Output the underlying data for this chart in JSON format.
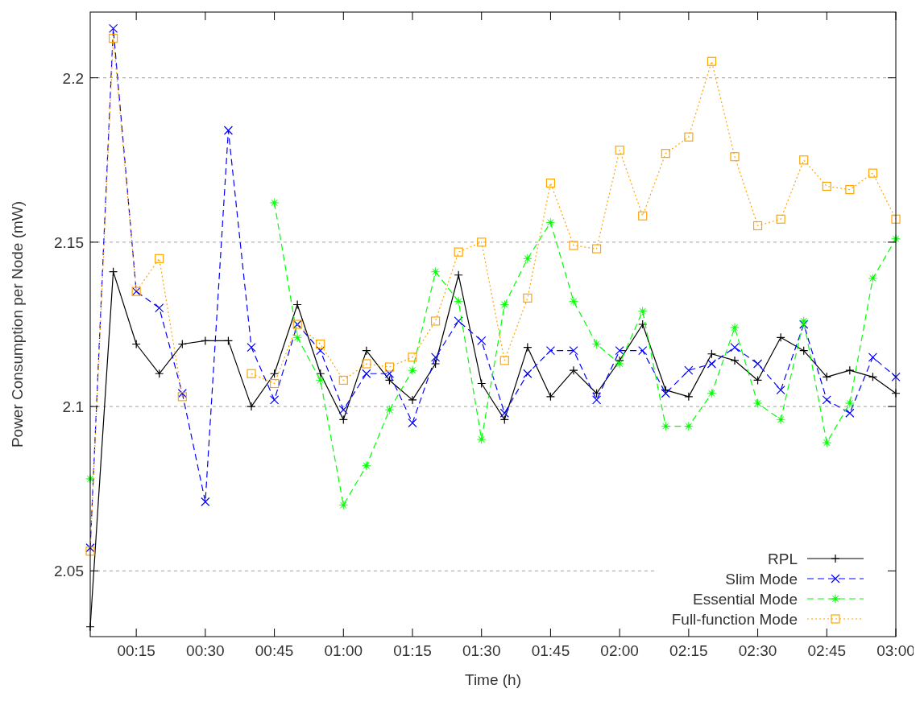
{
  "chart_data": {
    "type": "line",
    "xlabel": "Time (h)",
    "ylabel": "Power Consumption per Node (mW)",
    "x": [
      0.0833,
      0.1667,
      0.25,
      0.3333,
      0.4167,
      0.5,
      0.5833,
      0.6667,
      0.75,
      0.8333,
      0.9167,
      1,
      1.0833,
      1.1667,
      1.25,
      1.3333,
      1.4167,
      1.5,
      1.5833,
      1.6667,
      1.75,
      1.8333,
      1.9167,
      2,
      2.0833,
      2.1667,
      2.25,
      2.3333,
      2.4167,
      2.5,
      2.5833,
      2.6667,
      2.75,
      2.8333,
      2.9167,
      3
    ],
    "series": [
      {
        "name": "RPL",
        "color": "#000000",
        "line_style": "solid",
        "marker": "plus",
        "values": [
          2.033,
          2.141,
          2.119,
          2.11,
          2.119,
          2.12,
          2.12,
          2.1,
          2.11,
          2.131,
          2.11,
          2.096,
          2.117,
          2.108,
          2.102,
          2.113,
          2.14,
          2.107,
          2.096,
          2.118,
          2.103,
          2.111,
          2.104,
          2.114,
          2.125,
          2.105,
          2.103,
          2.116,
          2.114,
          2.108,
          2.121,
          2.117,
          2.109,
          2.111,
          2.109,
          2.104
        ]
      },
      {
        "name": "Slim Mode",
        "color": "#0000ff",
        "line_style": "dashed",
        "marker": "cross",
        "values": [
          2.057,
          2.215,
          2.135,
          2.13,
          2.104,
          2.071,
          2.184,
          2.118,
          2.102,
          2.125,
          2.117,
          2.099,
          2.11,
          2.11,
          2.095,
          2.115,
          2.126,
          2.12,
          2.098,
          2.11,
          2.117,
          2.117,
          2.102,
          2.117,
          2.117,
          2.104,
          2.111,
          2.113,
          2.118,
          2.113,
          2.105,
          2.125,
          2.102,
          2.098,
          2.115,
          2.109
        ]
      },
      {
        "name": "Essential Mode",
        "color": "#00ff00",
        "line_style": "dashed",
        "marker": "star",
        "values": [
          2.078,
          null,
          null,
          null,
          null,
          null,
          null,
          null,
          2.162,
          2.121,
          2.108,
          2.07,
          2.082,
          2.099,
          2.111,
          2.141,
          2.132,
          2.09,
          2.131,
          2.145,
          2.156,
          2.132,
          2.119,
          2.113,
          2.129,
          2.094,
          2.094,
          2.104,
          2.124,
          2.101,
          2.096,
          2.126,
          2.089,
          2.101,
          2.139,
          2.151
        ]
      },
      {
        "name": "Full-function Mode",
        "color": "#ffa500",
        "line_style": "dotted",
        "marker": "square",
        "values": [
          2.056,
          2.212,
          2.135,
          2.145,
          2.103,
          null,
          null,
          2.11,
          2.107,
          2.125,
          2.119,
          2.108,
          2.113,
          2.112,
          2.115,
          2.126,
          2.147,
          2.15,
          2.114,
          2.133,
          2.168,
          2.149,
          2.148,
          2.178,
          2.158,
          2.177,
          2.182,
          2.205,
          2.176,
          2.155,
          2.157,
          2.175,
          2.167,
          2.166,
          2.171,
          2.157
        ]
      }
    ],
    "xlim": [
      0.0833,
      3
    ],
    "xticks": [
      {
        "value": 0.25,
        "label": "00:15"
      },
      {
        "value": 0.5,
        "label": "00:30"
      },
      {
        "value": 0.75,
        "label": "00:45"
      },
      {
        "value": 1,
        "label": "01:00"
      },
      {
        "value": 1.25,
        "label": "01:15"
      },
      {
        "value": 1.5,
        "label": "01:30"
      },
      {
        "value": 1.75,
        "label": "01:45"
      },
      {
        "value": 2,
        "label": "02:00"
      },
      {
        "value": 2.25,
        "label": "02:15"
      },
      {
        "value": 2.5,
        "label": "02:30"
      },
      {
        "value": 2.75,
        "label": "02:45"
      },
      {
        "value": 3,
        "label": "03:00"
      }
    ],
    "ylim": [
      2.03,
      2.22
    ],
    "yticks": [
      2.05,
      2.1,
      2.15,
      2.2
    ],
    "grid": "y",
    "legend": "bottom right"
  }
}
